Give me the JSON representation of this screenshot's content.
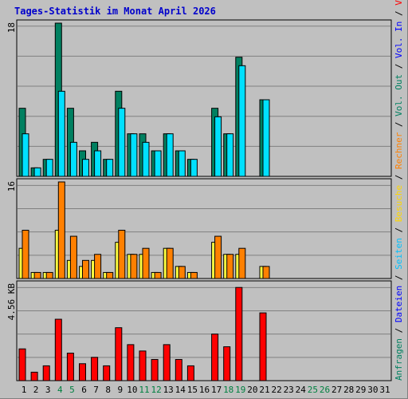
{
  "title": "Tages-Statistik im Monat April 2026",
  "legend": [
    {
      "label": "Anfragen",
      "color": "#008060"
    },
    {
      "sep": " / ",
      "color": "#000000"
    },
    {
      "label": "Dateien",
      "color": "#0000ff"
    },
    {
      "sep": " / ",
      "color": "#000000"
    },
    {
      "label": "Seiten",
      "color": "#00c0ff"
    },
    {
      "sep": " / ",
      "color": "#000000"
    },
    {
      "label": "Besuche",
      "color": "#ffd700"
    },
    {
      "sep": " / ",
      "color": "#000000"
    },
    {
      "label": "Rechner",
      "color": "#ff8000"
    },
    {
      "sep": " / ",
      "color": "#000000"
    },
    {
      "label": "Vol. Out",
      "color": "#008060"
    },
    {
      "sep": " / ",
      "color": "#000000"
    },
    {
      "label": "Vol. In",
      "color": "#0000ff"
    },
    {
      "sep": " / ",
      "color": "#000000"
    },
    {
      "label": "Volumen",
      "color": "#ff0000"
    }
  ],
  "colors": {
    "anfragen": "#008060",
    "seiten": "#00e0ff",
    "besuche": "#ffff40",
    "rechner": "#ff8000",
    "volumen": "#ff0000",
    "weekday_label": "#000000",
    "weekend_label": "#008040",
    "grid": "#808080"
  },
  "chart_data": {
    "type": "bar",
    "title": "Tages-Statistik im Monat April 2026",
    "days": [
      "1",
      "2",
      "3",
      "4",
      "5",
      "6",
      "7",
      "8",
      "9",
      "10",
      "11",
      "12",
      "13",
      "14",
      "15",
      "16",
      "17",
      "18",
      "19",
      "20",
      "21",
      "22",
      "23",
      "24",
      "25",
      "26",
      "27",
      "28",
      "29",
      "30",
      "31"
    ],
    "weekend_days": [
      "4",
      "5",
      "11",
      "12",
      "18",
      "19",
      "25",
      "26"
    ],
    "panels": [
      {
        "id": "requests",
        "ymax_label": "18",
        "ymax": 18,
        "series": [
          {
            "name": "Anfragen",
            "color": "#008060",
            "values": [
              8,
              1,
              2,
              18,
              8,
              3,
              4,
              2,
              10,
              5,
              5,
              3,
              5,
              3,
              2,
              0,
              8,
              5,
              14,
              0,
              9,
              0,
              0,
              0,
              0,
              0,
              0,
              0,
              0,
              0,
              0
            ]
          },
          {
            "name": "Seiten",
            "color": "#00e0ff",
            "values": [
              5,
              1,
              2,
              10,
              4,
              2,
              3,
              2,
              8,
              5,
              4,
              3,
              5,
              3,
              2,
              0,
              7,
              5,
              13,
              0,
              9,
              0,
              0,
              0,
              0,
              0,
              0,
              0,
              0,
              0,
              0
            ]
          }
        ]
      },
      {
        "id": "visits",
        "ymax_label": "16",
        "ymax": 16,
        "series": [
          {
            "name": "Besuche",
            "color": "#ffff40",
            "values": [
              5,
              1,
              1,
              8,
              3,
              2,
              3,
              1,
              6,
              4,
              4,
              1,
              5,
              2,
              1,
              0,
              6,
              4,
              4,
              0,
              2,
              0,
              0,
              0,
              0,
              0,
              0,
              0,
              0,
              0,
              0
            ]
          },
          {
            "name": "Rechner",
            "color": "#ff8000",
            "values": [
              8,
              1,
              1,
              16,
              7,
              3,
              4,
              1,
              8,
              4,
              5,
              1,
              5,
              2,
              1,
              0,
              7,
              4,
              5,
              0,
              2,
              0,
              0,
              0,
              0,
              0,
              0,
              0,
              0,
              0,
              0
            ]
          }
        ]
      },
      {
        "id": "volume",
        "ymax_label": "4.56 KB",
        "ymax": 4.56,
        "series": [
          {
            "name": "Volumen",
            "color": "#ff0000",
            "values": [
              1.5,
              0.4,
              0.7,
              2.9,
              1.3,
              0.8,
              1.1,
              0.7,
              2.5,
              1.7,
              1.4,
              1.0,
              1.7,
              1.0,
              0.7,
              0,
              2.2,
              1.6,
              4.4,
              0,
              3.2,
              0,
              0,
              0,
              0,
              0,
              0,
              0,
              0,
              0,
              0
            ]
          }
        ]
      }
    ]
  }
}
